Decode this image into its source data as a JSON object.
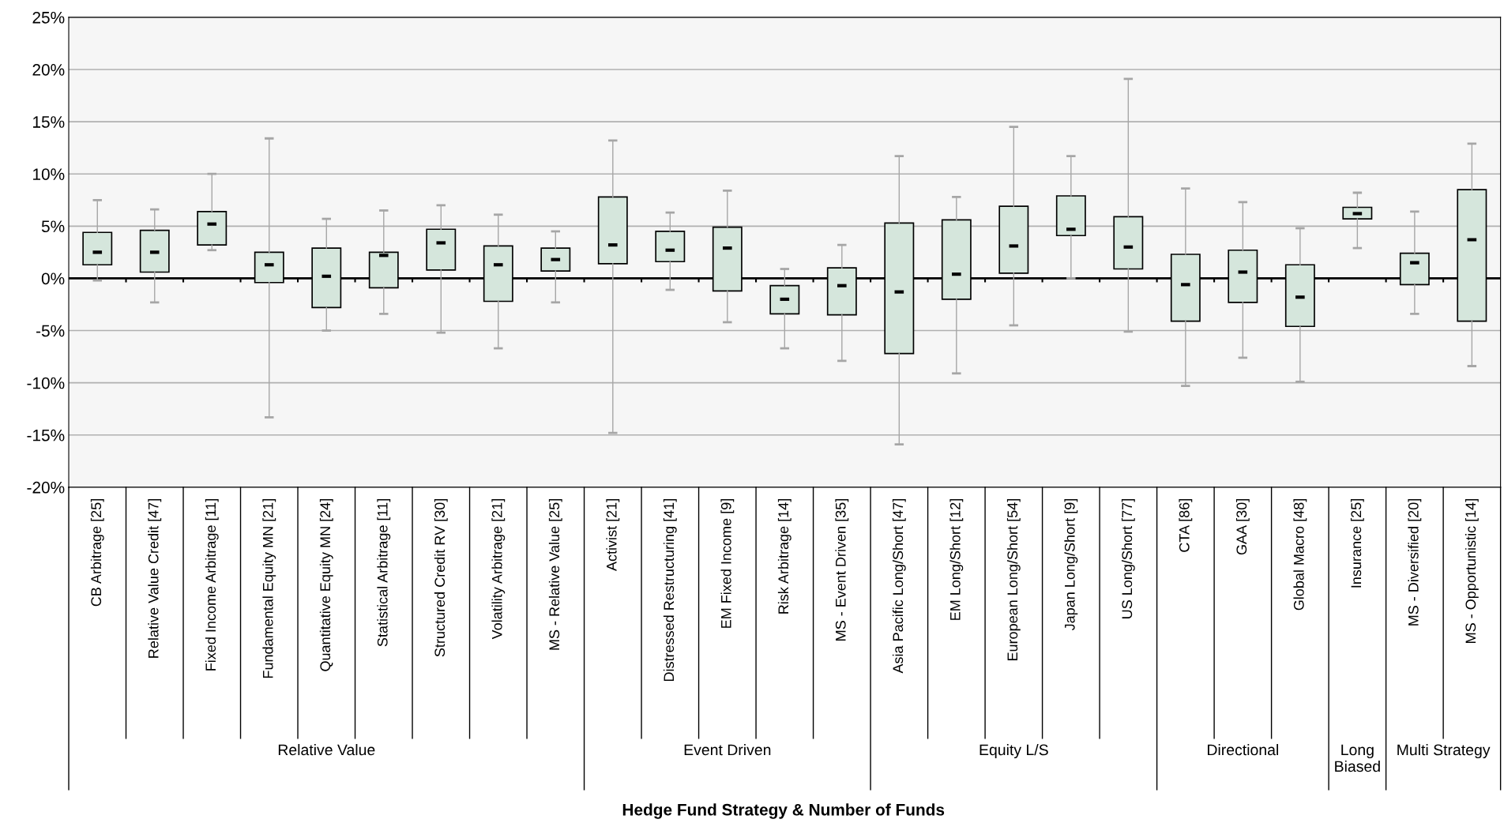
{
  "chart_data": {
    "type": "box",
    "annotations": [
      "Relative Value",
      "Event Driven",
      "Equity L/S",
      "Directional",
      "Long Biased",
      "Multi Strategy",
      "Hedge Fund Strategy & Number of Funds"
    ],
    "categories": [
      "CB Arbitrage [25]",
      "Relative Value Credit [47]",
      "Fixed Income Arbitrage [11]",
      "Fundamental Equity MN [21]",
      "Quantitative Equity MN [24]",
      "Statistical Arbitrage [11]",
      "Structured Credit RV [30]",
      "Volatility Arbitrage [21]",
      "MS - Relative Value [25]",
      "Activist [21]",
      "Distressed Restructuring [41]",
      "EM Fixed Income [9]",
      "Risk Arbitrage [14]",
      "MS - Event Driven [35]",
      "Asia Pacific Long/Short [47]",
      "EM Long/Short [12]",
      "European Long/Short [54]",
      "Japan Long/Short [9]",
      "US Long/Short [77]",
      "CTA [86]",
      "GAA [30]",
      "Global Macro [48]",
      "Insurance [25]",
      "MS - Diversified [20]",
      "MS - Opportunistic [14]"
    ],
    "boxes": [
      {
        "low": -0.2,
        "q1": 1.3,
        "median": 2.5,
        "q3": 4.4,
        "high": 7.5
      },
      {
        "low": -2.3,
        "q1": 0.6,
        "median": 2.5,
        "q3": 4.6,
        "high": 6.6
      },
      {
        "low": 2.7,
        "q1": 3.2,
        "median": 5.2,
        "q3": 6.4,
        "high": 10.0
      },
      {
        "low": -13.3,
        "q1": -0.4,
        "median": 1.3,
        "q3": 2.5,
        "high": 13.4
      },
      {
        "low": -5.0,
        "q1": -2.8,
        "median": 0.2,
        "q3": 2.9,
        "high": 5.7
      },
      {
        "low": -3.4,
        "q1": -0.9,
        "median": 2.2,
        "q3": 2.5,
        "high": 6.5
      },
      {
        "low": -5.2,
        "q1": 0.8,
        "median": 3.4,
        "q3": 4.7,
        "high": 7.0
      },
      {
        "low": -6.7,
        "q1": -2.2,
        "median": 1.3,
        "q3": 3.1,
        "high": 6.1
      },
      {
        "low": -2.3,
        "q1": 0.7,
        "median": 1.8,
        "q3": 2.9,
        "high": 4.5
      },
      {
        "low": -14.8,
        "q1": 1.4,
        "median": 3.2,
        "q3": 7.8,
        "high": 13.2
      },
      {
        "low": -1.1,
        "q1": 1.6,
        "median": 2.7,
        "q3": 4.5,
        "high": 6.3
      },
      {
        "low": -4.2,
        "q1": -1.2,
        "median": 2.9,
        "q3": 4.9,
        "high": 8.4
      },
      {
        "low": -6.7,
        "q1": -3.4,
        "median": -2.0,
        "q3": -0.7,
        "high": 0.9
      },
      {
        "low": -7.9,
        "q1": -3.5,
        "median": -0.7,
        "q3": 1.0,
        "high": 3.2
      },
      {
        "low": -15.9,
        "q1": -7.2,
        "median": -1.3,
        "q3": 5.3,
        "high": 11.7
      },
      {
        "low": -9.1,
        "q1": -2.0,
        "median": 0.4,
        "q3": 5.6,
        "high": 7.8
      },
      {
        "low": -4.5,
        "q1": 0.5,
        "median": 3.1,
        "q3": 6.9,
        "high": 14.5
      },
      {
        "low": 0.0,
        "q1": 4.1,
        "median": 4.7,
        "q3": 7.9,
        "high": 11.7
      },
      {
        "low": -5.1,
        "q1": 0.9,
        "median": 3.0,
        "q3": 5.9,
        "high": 19.1
      },
      {
        "low": -10.3,
        "q1": -4.1,
        "median": -0.6,
        "q3": 2.3,
        "high": 8.6
      },
      {
        "low": -7.6,
        "q1": -2.3,
        "median": 0.6,
        "q3": 2.7,
        "high": 7.3
      },
      {
        "low": -9.9,
        "q1": -4.6,
        "median": -1.8,
        "q3": 1.3,
        "high": 4.8
      },
      {
        "low": 2.9,
        "q1": 5.7,
        "median": 6.2,
        "q3": 6.8,
        "high": 8.2
      },
      {
        "low": -3.4,
        "q1": -0.6,
        "median": 1.5,
        "q3": 2.4,
        "high": 6.4
      },
      {
        "low": -8.4,
        "q1": -4.1,
        "median": 3.7,
        "q3": 8.5,
        "high": 12.9
      }
    ],
    "color": "#d5e6dc",
    "ylim": [
      -20,
      25
    ],
    "yticks": [
      {
        "value": -20,
        "label": "-20%"
      },
      {
        "value": -15,
        "label": "-15%"
      },
      {
        "value": -10,
        "label": "-10%"
      },
      {
        "value": -5,
        "label": "-5%"
      },
      {
        "value": 0,
        "label": "0%"
      },
      {
        "value": 5,
        "label": "5%"
      },
      {
        "value": 10,
        "label": "10%"
      },
      {
        "value": 15,
        "label": "15%"
      },
      {
        "value": 20,
        "label": "20%"
      },
      {
        "value": 25,
        "label": "25%"
      }
    ],
    "grid": "y",
    "ref_lines": [
      {
        "axis": "y",
        "value": 0,
        "color": "#000000"
      }
    ]
  }
}
